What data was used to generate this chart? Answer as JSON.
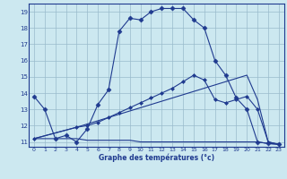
{
  "xlabel": "Graphe des températures (°c)",
  "bg_color": "#cce8f0",
  "grid_color": "#99bbcc",
  "line_color": "#1f3a8f",
  "xmin": -0.5,
  "xmax": 23.5,
  "ymin": 10.7,
  "ymax": 19.5,
  "yticks": [
    11,
    12,
    13,
    14,
    15,
    16,
    17,
    18,
    19
  ],
  "xticks": [
    0,
    1,
    2,
    3,
    4,
    5,
    6,
    7,
    8,
    9,
    10,
    11,
    12,
    13,
    14,
    15,
    16,
    17,
    18,
    19,
    20,
    21,
    22,
    23
  ],
  "series": [
    {
      "x": [
        0,
        1,
        2,
        3,
        4,
        5,
        6,
        7,
        8,
        9,
        10,
        11,
        12,
        13,
        14,
        15,
        16,
        17,
        18,
        19,
        20,
        21,
        22,
        23
      ],
      "y": [
        13.8,
        13.0,
        11.2,
        11.4,
        11.0,
        11.8,
        13.3,
        14.2,
        17.8,
        18.6,
        18.5,
        19.0,
        19.2,
        19.2,
        19.2,
        18.5,
        18.0,
        16.0,
        15.1,
        13.7,
        13.0,
        11.0,
        10.9,
        10.85
      ],
      "marker": "D",
      "ms": 2.5
    },
    {
      "x": [
        0,
        1,
        2,
        3,
        4,
        5,
        6,
        7,
        8,
        9,
        10,
        11,
        12,
        13,
        14,
        15,
        16,
        17,
        18,
        19,
        20,
        21,
        22,
        23
      ],
      "y": [
        11.2,
        11.2,
        11.2,
        11.2,
        11.2,
        11.1,
        11.1,
        11.1,
        11.1,
        11.1,
        11.0,
        11.0,
        11.0,
        11.0,
        11.0,
        11.0,
        11.0,
        11.0,
        11.0,
        11.0,
        11.0,
        11.0,
        10.9,
        10.85
      ],
      "marker": null,
      "ms": 0
    },
    {
      "x": [
        0,
        4,
        5,
        6,
        7,
        8,
        9,
        10,
        11,
        12,
        13,
        14,
        15,
        16,
        17,
        18,
        19,
        20,
        21,
        22,
        23
      ],
      "y": [
        11.2,
        11.9,
        12.1,
        12.3,
        12.5,
        12.7,
        12.9,
        13.1,
        13.3,
        13.5,
        13.7,
        13.9,
        14.1,
        14.3,
        14.5,
        14.7,
        14.9,
        15.1,
        13.6,
        11.0,
        10.85
      ],
      "marker": null,
      "ms": 0
    },
    {
      "x": [
        0,
        4,
        5,
        6,
        7,
        8,
        9,
        10,
        11,
        12,
        13,
        14,
        15,
        16,
        17,
        18,
        19,
        20,
        21,
        22,
        23
      ],
      "y": [
        11.2,
        11.9,
        12.0,
        12.2,
        12.5,
        12.8,
        13.1,
        13.4,
        13.7,
        14.0,
        14.3,
        14.7,
        15.1,
        14.8,
        13.6,
        13.4,
        13.6,
        13.8,
        13.0,
        11.0,
        10.85
      ],
      "marker": "D",
      "ms": 2.0
    }
  ]
}
